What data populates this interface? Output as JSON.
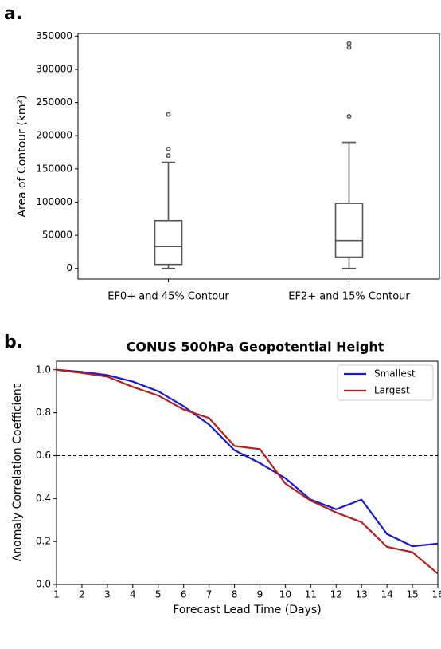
{
  "chart_data": [
    {
      "type": "box",
      "panel_label": "a.",
      "ylabel": "Area of Contour (km²)",
      "categories": [
        "EF0+ and 45% Contour",
        "EF2+ and 15% Contour"
      ],
      "boxes": [
        {
          "whislo": 0,
          "q1": 6000,
          "med": 33000,
          "q3": 72000,
          "whishi": 160000,
          "fliers": [
            170000,
            180000,
            232000
          ]
        },
        {
          "whislo": 0,
          "q1": 17000,
          "med": 42000,
          "q3": 98000,
          "whishi": 190000,
          "fliers": [
            229000,
            333000,
            339000
          ]
        }
      ],
      "color": "#555555",
      "ylim": [
        -16000,
        354000
      ],
      "yticks": [
        0,
        50000,
        100000,
        150000,
        200000,
        250000,
        300000,
        350000
      ]
    },
    {
      "type": "line",
      "panel_label": "b.",
      "title": "CONUS 500hPa Geopotential Height",
      "xlabel": "Forecast Lead Time (Days)",
      "ylabel": "Anomaly Correlation Coefficient",
      "x": [
        1,
        2,
        3,
        4,
        5,
        6,
        7,
        8,
        9,
        10,
        11,
        12,
        13,
        14,
        15,
        16
      ],
      "series": [
        {
          "name": "Smallest",
          "color": "#1a1acc",
          "values": [
            1.0,
            0.99,
            0.975,
            0.945,
            0.9,
            0.83,
            0.745,
            0.625,
            0.565,
            0.495,
            0.395,
            0.35,
            0.395,
            0.235,
            0.178,
            0.19
          ]
        },
        {
          "name": "Largest",
          "color": "#b22222",
          "values": [
            1.0,
            0.985,
            0.968,
            0.92,
            0.88,
            0.815,
            0.775,
            0.645,
            0.63,
            0.47,
            0.39,
            0.335,
            0.29,
            0.175,
            0.15,
            0.05
          ]
        }
      ],
      "hline": 0.6,
      "xlim": [
        1,
        16
      ],
      "xticks": [
        1,
        2,
        3,
        4,
        5,
        6,
        7,
        8,
        9,
        10,
        11,
        12,
        13,
        14,
        15,
        16
      ],
      "ylim": [
        0,
        1.04
      ],
      "yticks": [
        {
          "value": 0,
          "label": "0.0"
        },
        0.2,
        0.4,
        0.6,
        0.8,
        {
          "value": 1,
          "label": "1.0"
        }
      ],
      "legend": "upper right"
    }
  ]
}
